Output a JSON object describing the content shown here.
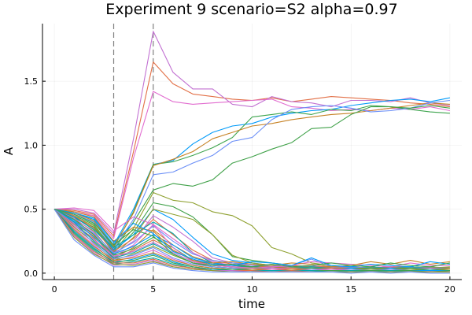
{
  "chart_data": {
    "type": "line",
    "title": "Experiment 9  scenario=S2  alpha=0.97",
    "xlabel": "time",
    "ylabel": "A",
    "xlim": [
      -0.6,
      20.6
    ],
    "ylim": [
      -0.05,
      1.95
    ],
    "x_ticks": [
      0,
      5,
      10,
      15,
      20
    ],
    "y_ticks": [
      0.0,
      0.5,
      1.0,
      1.5
    ],
    "x_tick_labels": [
      "0",
      "5",
      "10",
      "15",
      "20"
    ],
    "y_tick_labels": [
      "0.0",
      "0.5",
      "1.0",
      "1.5"
    ],
    "grid": true,
    "legend": "none",
    "vlines": [
      3,
      5
    ],
    "x": [
      0,
      1,
      2,
      3,
      4,
      5,
      6,
      7,
      8,
      9,
      10,
      11,
      12,
      13,
      14,
      15,
      16,
      17,
      18,
      19,
      20
    ],
    "series": [
      {
        "color": "#e26f46",
        "values": [
          0.5,
          0.49,
          0.46,
          0.29,
          0.95,
          1.65,
          1.48,
          1.4,
          1.38,
          1.36,
          1.35,
          1.37,
          1.34,
          1.36,
          1.38,
          1.37,
          1.36,
          1.35,
          1.33,
          1.32,
          1.3
        ]
      },
      {
        "color": "#c271d2",
        "values": [
          0.5,
          0.5,
          0.47,
          0.31,
          1.05,
          1.89,
          1.57,
          1.44,
          1.44,
          1.32,
          1.3,
          1.38,
          1.34,
          1.33,
          1.3,
          1.35,
          1.35,
          1.34,
          1.37,
          1.33,
          1.31
        ]
      },
      {
        "color": "#e16ccf",
        "values": [
          0.5,
          0.48,
          0.45,
          0.27,
          0.9,
          1.42,
          1.34,
          1.32,
          1.33,
          1.34,
          1.35,
          1.36,
          1.3,
          1.29,
          1.27,
          1.28,
          1.27,
          1.29,
          1.28,
          1.3,
          1.27
        ]
      },
      {
        "color": "#009af9",
        "values": [
          0.5,
          0.47,
          0.42,
          0.22,
          0.5,
          0.85,
          0.88,
          1.01,
          1.1,
          1.15,
          1.17,
          1.22,
          1.25,
          1.27,
          1.28,
          1.31,
          1.33,
          1.35,
          1.36,
          1.34,
          1.37
        ]
      },
      {
        "color": "#3da44d",
        "values": [
          0.5,
          0.46,
          0.4,
          0.2,
          0.48,
          0.85,
          0.87,
          0.92,
          0.98,
          1.06,
          1.22,
          1.24,
          1.26,
          1.24,
          1.28,
          1.27,
          1.31,
          1.3,
          1.28,
          1.26,
          1.25
        ]
      },
      {
        "color": "#c68225",
        "values": [
          0.5,
          0.47,
          0.41,
          0.21,
          0.47,
          0.84,
          0.89,
          0.95,
          1.05,
          1.1,
          1.15,
          1.17,
          1.2,
          1.22,
          1.24,
          1.25,
          1.27,
          1.29,
          1.31,
          1.33,
          1.32
        ]
      },
      {
        "color": "#6b8ff7",
        "values": [
          0.5,
          0.46,
          0.4,
          0.19,
          0.42,
          0.77,
          0.79,
          0.86,
          0.92,
          1.03,
          1.06,
          1.2,
          1.28,
          1.3,
          1.31,
          1.29,
          1.26,
          1.27,
          1.29,
          1.33,
          1.35
        ]
      },
      {
        "color": "#40a149",
        "values": [
          0.5,
          0.45,
          0.38,
          0.18,
          0.4,
          0.65,
          0.7,
          0.68,
          0.73,
          0.86,
          0.91,
          0.97,
          1.02,
          1.13,
          1.14,
          1.24,
          1.3,
          1.3,
          1.29,
          1.31,
          1.29
        ]
      },
      {
        "color": "#8ea02f",
        "values": [
          0.5,
          0.44,
          0.37,
          0.17,
          0.35,
          0.63,
          0.57,
          0.55,
          0.48,
          0.45,
          0.37,
          0.2,
          0.15,
          0.08,
          0.06,
          0.05,
          0.04,
          0.05,
          0.04,
          0.04,
          0.05
        ]
      },
      {
        "color": "#40a149",
        "values": [
          0.5,
          0.43,
          0.36,
          0.16,
          0.32,
          0.55,
          0.52,
          0.44,
          0.3,
          0.13,
          0.1,
          0.08,
          0.06,
          0.05,
          0.05,
          0.05,
          0.04,
          0.04,
          0.05,
          0.04,
          0.04
        ]
      },
      {
        "color": "#009af9",
        "values": [
          0.5,
          0.44,
          0.34,
          0.18,
          0.3,
          0.5,
          0.42,
          0.28,
          0.15,
          0.1,
          0.08,
          0.06,
          0.05,
          0.05,
          0.05,
          0.04,
          0.04,
          0.05,
          0.04,
          0.04,
          0.04
        ]
      },
      {
        "color": "#8ea02f",
        "values": [
          0.5,
          0.42,
          0.33,
          0.14,
          0.28,
          0.5,
          0.46,
          0.42,
          0.3,
          0.14,
          0.08,
          0.06,
          0.05,
          0.04,
          0.05,
          0.05,
          0.04,
          0.04,
          0.04,
          0.05,
          0.04
        ]
      },
      {
        "color": "#c271d2",
        "values": [
          0.5,
          0.43,
          0.32,
          0.15,
          0.25,
          0.45,
          0.36,
          0.25,
          0.12,
          0.08,
          0.07,
          0.05,
          0.05,
          0.06,
          0.04,
          0.05,
          0.04,
          0.05,
          0.04,
          0.04,
          0.03
        ]
      },
      {
        "color": "#e26f46",
        "values": [
          0.5,
          0.45,
          0.35,
          0.17,
          0.27,
          0.42,
          0.3,
          0.18,
          0.1,
          0.07,
          0.06,
          0.05,
          0.06,
          0.05,
          0.05,
          0.04,
          0.04,
          0.05,
          0.05,
          0.04,
          0.04
        ]
      },
      {
        "color": "#00a9ad",
        "values": [
          0.5,
          0.44,
          0.34,
          0.2,
          0.3,
          0.4,
          0.31,
          0.16,
          0.08,
          0.06,
          0.05,
          0.05,
          0.04,
          0.05,
          0.04,
          0.04,
          0.05,
          0.04,
          0.05,
          0.04,
          0.04
        ]
      },
      {
        "color": "#6b8ff7",
        "values": [
          0.5,
          0.41,
          0.31,
          0.16,
          0.24,
          0.37,
          0.25,
          0.15,
          0.1,
          0.08,
          0.06,
          0.06,
          0.06,
          0.11,
          0.05,
          0.05,
          0.04,
          0.04,
          0.04,
          0.04,
          0.04
        ]
      },
      {
        "color": "#e16ccf",
        "values": [
          0.5,
          0.4,
          0.3,
          0.13,
          0.22,
          0.38,
          0.27,
          0.16,
          0.09,
          0.06,
          0.05,
          0.05,
          0.04,
          0.04,
          0.04,
          0.04,
          0.03,
          0.04,
          0.04,
          0.04,
          0.03
        ]
      },
      {
        "color": "#c68225",
        "values": [
          0.5,
          0.39,
          0.29,
          0.12,
          0.2,
          0.34,
          0.22,
          0.13,
          0.08,
          0.06,
          0.05,
          0.05,
          0.04,
          0.04,
          0.04,
          0.04,
          0.04,
          0.04,
          0.04,
          0.03,
          0.04
        ]
      },
      {
        "color": "#009af9",
        "values": [
          0.5,
          0.41,
          0.28,
          0.15,
          0.21,
          0.3,
          0.22,
          0.12,
          0.08,
          0.06,
          0.05,
          0.04,
          0.04,
          0.04,
          0.03,
          0.04,
          0.03,
          0.04,
          0.03,
          0.03,
          0.03
        ]
      },
      {
        "color": "#3da44d",
        "values": [
          0.5,
          0.42,
          0.3,
          0.14,
          0.19,
          0.28,
          0.2,
          0.1,
          0.07,
          0.05,
          0.05,
          0.04,
          0.04,
          0.04,
          0.04,
          0.03,
          0.04,
          0.03,
          0.04,
          0.03,
          0.03
        ]
      },
      {
        "color": "#e26f46",
        "values": [
          0.5,
          0.38,
          0.27,
          0.11,
          0.18,
          0.26,
          0.18,
          0.1,
          0.06,
          0.05,
          0.04,
          0.04,
          0.04,
          0.03,
          0.04,
          0.03,
          0.03,
          0.03,
          0.03,
          0.03,
          0.03
        ]
      },
      {
        "color": "#c271d2",
        "values": [
          0.5,
          0.37,
          0.26,
          0.13,
          0.17,
          0.24,
          0.16,
          0.09,
          0.06,
          0.05,
          0.04,
          0.04,
          0.03,
          0.03,
          0.03,
          0.03,
          0.03,
          0.03,
          0.03,
          0.03,
          0.03
        ]
      },
      {
        "color": "#00a9ad",
        "values": [
          0.5,
          0.4,
          0.25,
          0.12,
          0.16,
          0.23,
          0.15,
          0.08,
          0.05,
          0.04,
          0.04,
          0.03,
          0.03,
          0.03,
          0.03,
          0.03,
          0.03,
          0.03,
          0.03,
          0.03,
          0.03
        ]
      },
      {
        "color": "#8ea02f",
        "values": [
          0.5,
          0.36,
          0.24,
          0.1,
          0.15,
          0.21,
          0.14,
          0.08,
          0.05,
          0.04,
          0.04,
          0.03,
          0.03,
          0.03,
          0.03,
          0.03,
          0.03,
          0.03,
          0.03,
          0.02,
          0.03
        ]
      },
      {
        "color": "#6b8ff7",
        "values": [
          0.5,
          0.39,
          0.23,
          0.11,
          0.14,
          0.2,
          0.12,
          0.07,
          0.05,
          0.04,
          0.03,
          0.03,
          0.03,
          0.03,
          0.03,
          0.03,
          0.02,
          0.03,
          0.02,
          0.02,
          0.02
        ]
      },
      {
        "color": "#e16ccf",
        "values": [
          0.5,
          0.35,
          0.22,
          0.09,
          0.13,
          0.18,
          0.11,
          0.06,
          0.04,
          0.03,
          0.03,
          0.03,
          0.03,
          0.02,
          0.03,
          0.02,
          0.02,
          0.02,
          0.02,
          0.02,
          0.02
        ]
      },
      {
        "color": "#c68225",
        "values": [
          0.5,
          0.34,
          0.21,
          0.1,
          0.12,
          0.16,
          0.1,
          0.06,
          0.04,
          0.03,
          0.03,
          0.02,
          0.03,
          0.02,
          0.02,
          0.02,
          0.02,
          0.02,
          0.02,
          0.02,
          0.02
        ]
      },
      {
        "color": "#009af9",
        "values": [
          0.5,
          0.33,
          0.2,
          0.08,
          0.11,
          0.15,
          0.09,
          0.05,
          0.03,
          0.03,
          0.02,
          0.02,
          0.02,
          0.02,
          0.02,
          0.02,
          0.02,
          0.02,
          0.02,
          0.02,
          0.02
        ]
      },
      {
        "color": "#3da44d",
        "values": [
          0.5,
          0.32,
          0.19,
          0.09,
          0.1,
          0.14,
          0.08,
          0.05,
          0.03,
          0.03,
          0.02,
          0.02,
          0.02,
          0.02,
          0.02,
          0.02,
          0.02,
          0.02,
          0.02,
          0.01,
          0.02
        ]
      },
      {
        "color": "#00a9ad",
        "values": [
          0.5,
          0.31,
          0.18,
          0.07,
          0.09,
          0.12,
          0.07,
          0.04,
          0.03,
          0.02,
          0.02,
          0.02,
          0.02,
          0.02,
          0.01,
          0.02,
          0.01,
          0.02,
          0.01,
          0.01,
          0.01
        ]
      },
      {
        "color": "#e26f46",
        "values": [
          0.5,
          0.3,
          0.17,
          0.08,
          0.08,
          0.11,
          0.06,
          0.04,
          0.02,
          0.02,
          0.02,
          0.01,
          0.02,
          0.01,
          0.01,
          0.01,
          0.01,
          0.01,
          0.01,
          0.01,
          0.01
        ]
      },
      {
        "color": "#c271d2",
        "values": [
          0.5,
          0.29,
          0.16,
          0.06,
          0.07,
          0.1,
          0.05,
          0.03,
          0.02,
          0.02,
          0.01,
          0.01,
          0.01,
          0.01,
          0.01,
          0.01,
          0.01,
          0.01,
          0.01,
          0.01,
          0.01
        ]
      },
      {
        "color": "#8ea02f",
        "values": [
          0.5,
          0.28,
          0.15,
          0.07,
          0.06,
          0.09,
          0.05,
          0.03,
          0.02,
          0.01,
          0.01,
          0.01,
          0.01,
          0.01,
          0.01,
          0.01,
          0.01,
          0.01,
          0.01,
          0.01,
          0.01
        ]
      },
      {
        "color": "#6b8ff7",
        "values": [
          0.5,
          0.26,
          0.14,
          0.05,
          0.05,
          0.08,
          0.04,
          0.02,
          0.01,
          0.01,
          0.01,
          0.01,
          0.01,
          0.01,
          0.01,
          0.0,
          0.01,
          0.0,
          0.01,
          0.0,
          0.0
        ]
      },
      {
        "color": "#e16ccf",
        "values": [
          0.5,
          0.51,
          0.49,
          0.33,
          0.44,
          0.38,
          0.2,
          0.09,
          0.06,
          0.05,
          0.04,
          0.05,
          0.06,
          0.09,
          0.08,
          0.07,
          0.06,
          0.05,
          0.08,
          0.06,
          0.06
        ]
      },
      {
        "color": "#c68225",
        "values": [
          0.5,
          0.48,
          0.44,
          0.25,
          0.36,
          0.33,
          0.18,
          0.1,
          0.08,
          0.09,
          0.07,
          0.06,
          0.08,
          0.07,
          0.05,
          0.06,
          0.09,
          0.07,
          0.1,
          0.07,
          0.09
        ]
      },
      {
        "color": "#009af9",
        "values": [
          0.5,
          0.47,
          0.43,
          0.24,
          0.39,
          0.31,
          0.17,
          0.11,
          0.07,
          0.06,
          0.09,
          0.08,
          0.06,
          0.12,
          0.06,
          0.05,
          0.07,
          0.06,
          0.05,
          0.09,
          0.07
        ]
      },
      {
        "color": "#3da44d",
        "values": [
          0.5,
          0.46,
          0.39,
          0.22,
          0.34,
          0.29,
          0.15,
          0.08,
          0.06,
          0.07,
          0.05,
          0.07,
          0.05,
          0.06,
          0.08,
          0.06,
          0.05,
          0.08,
          0.06,
          0.05,
          0.08
        ]
      }
    ]
  }
}
